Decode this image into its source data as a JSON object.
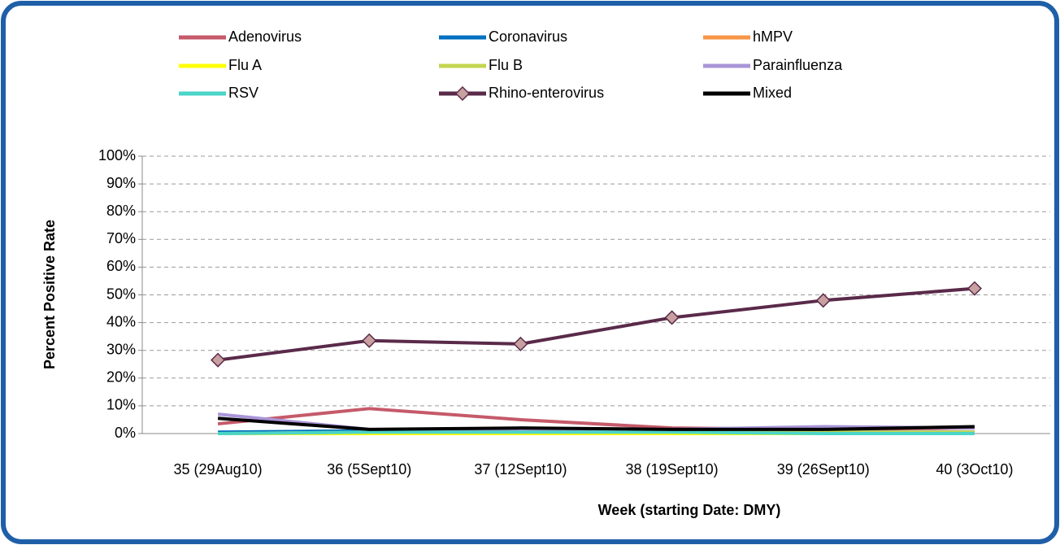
{
  "chart_data": {
    "type": "line",
    "xlabel": "Week (starting Date: DMY)",
    "ylabel": "Percent Positive Rate",
    "categories": [
      "35 (29Aug10)",
      "36 (5Sept10)",
      "37 (12Sept10)",
      "38 (19Sept10)",
      "39 (26Sept10)",
      "40 (3Oct10)"
    ],
    "series": [
      {
        "name": "Adenovirus",
        "color": "#c55a6a",
        "values": [
          3.5,
          9,
          5,
          2,
          1.5,
          2
        ]
      },
      {
        "name": "Coronavirus",
        "color": "#0070c0",
        "values": [
          0.5,
          1,
          0.5,
          0.5,
          0.5,
          0.5
        ]
      },
      {
        "name": "hMPV",
        "color": "#f79646",
        "values": [
          0,
          0,
          0,
          0,
          0,
          0
        ]
      },
      {
        "name": "Flu A",
        "color": "#ffff00",
        "values": [
          0,
          0,
          0,
          0,
          0,
          0
        ]
      },
      {
        "name": "Flu B",
        "color": "#c4d64f",
        "values": [
          0,
          0.5,
          0.5,
          0.5,
          0.5,
          0.5
        ]
      },
      {
        "name": "Parainfluenza",
        "color": "#a995d8",
        "values": [
          7,
          1.5,
          1,
          1.5,
          2.5,
          2
        ]
      },
      {
        "name": "RSV",
        "color": "#4bd4c8",
        "values": [
          0,
          0.5,
          0.5,
          0.5,
          0,
          0
        ]
      },
      {
        "name": "Rhino-enterovirus",
        "color": "#5a2a4a",
        "marker_color": "#c8a0a0",
        "values": [
          26.5,
          33.5,
          32.3,
          41.8,
          48,
          52.3
        ]
      },
      {
        "name": "Mixed",
        "color": "#000000",
        "values": [
          5.5,
          1.5,
          2,
          1.5,
          1.5,
          2.5
        ]
      }
    ],
    "ylim": [
      0,
      100
    ],
    "yticks": [
      {
        "value": 0,
        "label": "0%"
      },
      {
        "value": 10,
        "label": "10%"
      },
      {
        "value": 20,
        "label": "20%"
      },
      {
        "value": 30,
        "label": "30%"
      },
      {
        "value": 40,
        "label": "40%"
      },
      {
        "value": 50,
        "label": "50%"
      },
      {
        "value": 60,
        "label": "60%"
      },
      {
        "value": 70,
        "label": "70%"
      },
      {
        "value": 80,
        "label": "80%"
      },
      {
        "value": 90,
        "label": "90%"
      },
      {
        "value": 100,
        "label": "100%"
      }
    ],
    "grid": true
  }
}
